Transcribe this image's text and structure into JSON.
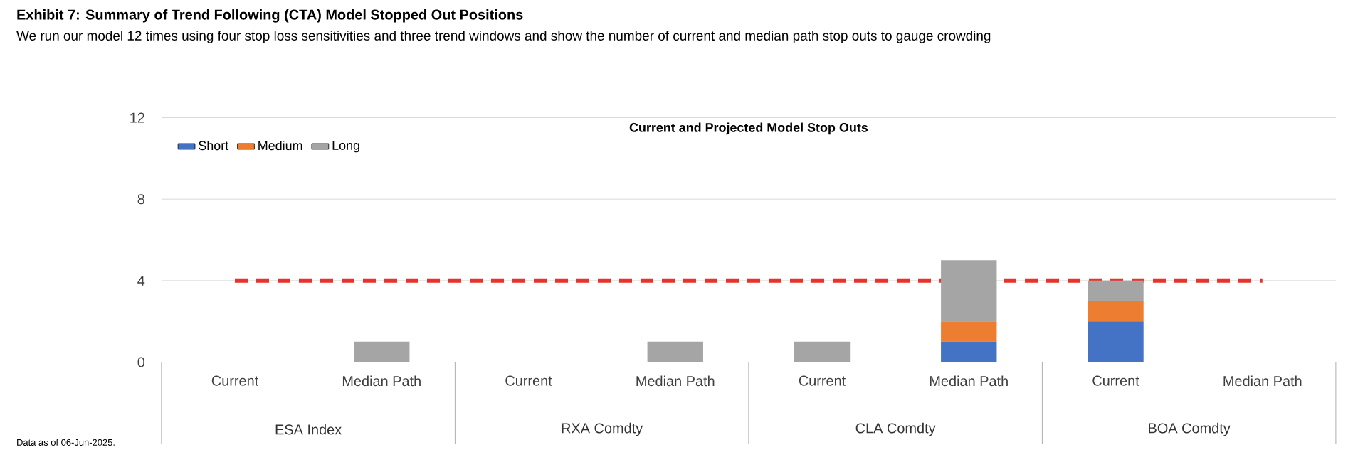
{
  "chart_data": {
    "type": "bar",
    "title": "Exhibit 7: Summary of Trend Following (CTA) Model Stopped Out Positions",
    "subtitle": "We run our model 12 times using four stop loss sensitivities and three trend windows and show the number of current and median path stop outs to gauge crowding",
    "categories": [
      "Current",
      "Median Path",
      "Current",
      "Median Path",
      "Current",
      "Median Path",
      "Current",
      "Median Path"
    ],
    "series": [
      {
        "name": "Short",
        "color": "#4472c4",
        "values": [
          0,
          0,
          0,
          0,
          0,
          1,
          2,
          0
        ]
      },
      {
        "name": "Medium",
        "color": "#ed7d31",
        "values": [
          0,
          0,
          0,
          0,
          0,
          1,
          1,
          0
        ]
      },
      {
        "name": "Long",
        "color": "#a5a5a5",
        "values": [
          0,
          1,
          0,
          1,
          1,
          3,
          1,
          0
        ]
      }
    ],
    "stacked": true,
    "ylim": [
      0,
      12
    ],
    "yticks": [
      0,
      4,
      8,
      12
    ],
    "grid": "y",
    "legend": "top left",
    "ref_lines": [
      {
        "axis": "y",
        "value": 4,
        "color": "#e8322b",
        "line_style": "dashed"
      }
    ],
    "annotations": [
      "Current and Projected Model Stop Outs",
      "ESA Index",
      "RXA Comdty",
      "CLA Comdty",
      "BOA Comdty",
      "Data as of 06-Jun-2025."
    ]
  }
}
